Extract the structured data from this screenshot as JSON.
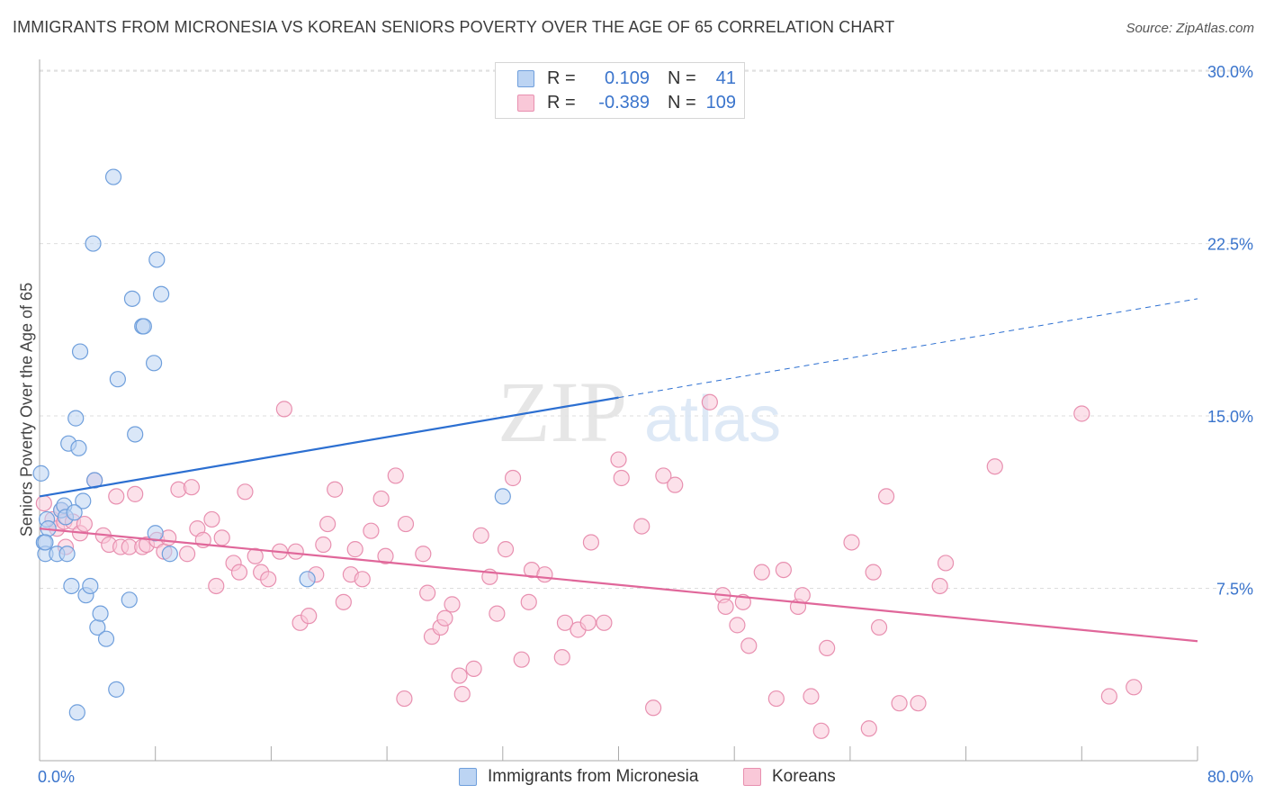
{
  "header": {
    "title": "IMMIGRANTS FROM MICRONESIA VS KOREAN SENIORS POVERTY OVER THE AGE OF 65 CORRELATION CHART",
    "source": "Source: ZipAtlas.com"
  },
  "watermark": {
    "part1": "ZIP",
    "part2": "atlas"
  },
  "legend_top": {
    "rows": [
      {
        "r_label": "R =",
        "r_value": "0.109",
        "n_label": "N =",
        "n_value": "41"
      },
      {
        "r_label": "R =",
        "r_value": "-0.389",
        "n_label": "N =",
        "n_value": "109"
      }
    ]
  },
  "colors": {
    "blue_fill": "#bcd4f3",
    "blue_stroke": "#6f9fdc",
    "blue_line": "#2c6fd1",
    "pink_fill": "#f9c8d8",
    "pink_stroke": "#e890b0",
    "pink_line": "#e0679a",
    "grid": "#dddddd",
    "tick_label": "#3a74cc"
  },
  "chart_data": {
    "type": "scatter",
    "title": "IMMIGRANTS FROM MICRONESIA VS KOREAN SENIORS POVERTY OVER THE AGE OF 65 CORRELATION CHART",
    "xlabel": "",
    "ylabel": "Seniors Poverty Over the Age of 65",
    "xlim": [
      0,
      80
    ],
    "ylim": [
      0,
      31.5
    ],
    "x_tick_labels": [
      "0.0%",
      "80.0%"
    ],
    "y_ticks": [
      7.5,
      15.0,
      22.5,
      30.0
    ],
    "y_tick_labels": [
      "7.5%",
      "15.0%",
      "22.5%",
      "30.0%"
    ],
    "grid": true,
    "legend_position": "bottom",
    "series": [
      {
        "name": "Immigrants from Micronesia",
        "color": "#bcd4f3",
        "trend": {
          "x0": 0,
          "y0": 11.5,
          "x1": 40,
          "y1": 15.8,
          "dashed_to_x": 80,
          "dashed_to_y": 20.1
        },
        "points": [
          [
            0.1,
            12.5
          ],
          [
            0.3,
            9.5
          ],
          [
            0.4,
            9.0
          ],
          [
            0.5,
            10.5
          ],
          [
            0.6,
            10.1
          ],
          [
            1.2,
            9.0
          ],
          [
            1.5,
            10.9
          ],
          [
            1.7,
            11.1
          ],
          [
            1.8,
            10.6
          ],
          [
            1.9,
            9.0
          ],
          [
            2.0,
            13.8
          ],
          [
            2.2,
            7.6
          ],
          [
            2.5,
            14.9
          ],
          [
            2.6,
            2.1
          ],
          [
            2.7,
            13.6
          ],
          [
            2.8,
            17.8
          ],
          [
            3.0,
            11.3
          ],
          [
            3.2,
            7.2
          ],
          [
            3.5,
            7.6
          ],
          [
            3.7,
            22.5
          ],
          [
            3.8,
            12.2
          ],
          [
            4.0,
            5.8
          ],
          [
            4.2,
            6.4
          ],
          [
            4.6,
            5.3
          ],
          [
            5.1,
            25.4
          ],
          [
            5.3,
            3.1
          ],
          [
            5.4,
            16.6
          ],
          [
            6.2,
            7.0
          ],
          [
            6.4,
            20.1
          ],
          [
            6.6,
            14.2
          ],
          [
            7.1,
            18.9
          ],
          [
            7.2,
            18.9
          ],
          [
            7.9,
            17.3
          ],
          [
            8.0,
            9.9
          ],
          [
            8.1,
            21.8
          ],
          [
            8.4,
            20.3
          ],
          [
            9.0,
            9.0
          ],
          [
            18.5,
            7.9
          ],
          [
            32.0,
            11.5
          ],
          [
            0.4,
            9.5
          ],
          [
            2.4,
            10.8
          ]
        ]
      },
      {
        "name": "Koreans",
        "color": "#f9c8d8",
        "trend": {
          "x0": 0,
          "y0": 10.1,
          "x1": 80,
          "y1": 5.2
        },
        "points": [
          [
            0.3,
            11.2
          ],
          [
            0.9,
            10.5
          ],
          [
            1.2,
            10.1
          ],
          [
            1.5,
            10.9
          ],
          [
            1.7,
            10.4
          ],
          [
            1.8,
            9.3
          ],
          [
            2.3,
            10.4
          ],
          [
            2.8,
            9.9
          ],
          [
            3.1,
            10.3
          ],
          [
            3.8,
            12.2
          ],
          [
            4.4,
            9.8
          ],
          [
            4.8,
            9.4
          ],
          [
            5.3,
            11.5
          ],
          [
            5.6,
            9.3
          ],
          [
            6.2,
            9.3
          ],
          [
            6.6,
            11.6
          ],
          [
            7.1,
            9.3
          ],
          [
            7.4,
            9.4
          ],
          [
            8.1,
            9.6
          ],
          [
            8.6,
            9.1
          ],
          [
            8.9,
            9.7
          ],
          [
            9.6,
            11.8
          ],
          [
            10.2,
            9.0
          ],
          [
            10.5,
            11.9
          ],
          [
            10.9,
            10.1
          ],
          [
            11.3,
            9.6
          ],
          [
            11.9,
            10.5
          ],
          [
            12.2,
            7.6
          ],
          [
            12.6,
            9.7
          ],
          [
            13.4,
            8.6
          ],
          [
            13.8,
            8.2
          ],
          [
            14.2,
            11.7
          ],
          [
            14.9,
            8.9
          ],
          [
            15.3,
            8.2
          ],
          [
            15.8,
            7.9
          ],
          [
            16.6,
            9.1
          ],
          [
            16.9,
            15.3
          ],
          [
            17.7,
            9.1
          ],
          [
            18.0,
            6.0
          ],
          [
            18.6,
            6.3
          ],
          [
            19.1,
            8.1
          ],
          [
            19.6,
            9.4
          ],
          [
            19.9,
            10.3
          ],
          [
            20.4,
            11.8
          ],
          [
            21.0,
            6.9
          ],
          [
            21.5,
            8.1
          ],
          [
            21.8,
            9.2
          ],
          [
            22.3,
            7.9
          ],
          [
            22.9,
            10.0
          ],
          [
            23.6,
            11.4
          ],
          [
            23.9,
            8.9
          ],
          [
            24.6,
            12.4
          ],
          [
            25.3,
            10.3
          ],
          [
            25.2,
            2.7
          ],
          [
            26.5,
            9.0
          ],
          [
            26.8,
            7.3
          ],
          [
            27.1,
            5.4
          ],
          [
            27.7,
            5.8
          ],
          [
            28.0,
            6.2
          ],
          [
            28.5,
            6.8
          ],
          [
            29.0,
            3.7
          ],
          [
            29.2,
            2.9
          ],
          [
            30.0,
            4.0
          ],
          [
            30.5,
            9.8
          ],
          [
            31.1,
            8.0
          ],
          [
            31.6,
            6.4
          ],
          [
            32.2,
            9.2
          ],
          [
            32.7,
            12.3
          ],
          [
            33.3,
            4.4
          ],
          [
            33.8,
            6.9
          ],
          [
            34.0,
            8.3
          ],
          [
            34.9,
            8.1
          ],
          [
            36.1,
            4.5
          ],
          [
            36.3,
            6.0
          ],
          [
            37.2,
            5.7
          ],
          [
            37.9,
            6.0
          ],
          [
            38.1,
            9.5
          ],
          [
            39.0,
            6.0
          ],
          [
            40.0,
            13.1
          ],
          [
            40.2,
            12.3
          ],
          [
            41.6,
            10.2
          ],
          [
            42.4,
            2.3
          ],
          [
            43.1,
            12.4
          ],
          [
            43.9,
            12.0
          ],
          [
            46.3,
            15.6
          ],
          [
            47.2,
            7.2
          ],
          [
            47.4,
            6.7
          ],
          [
            48.2,
            5.9
          ],
          [
            48.6,
            6.9
          ],
          [
            49.0,
            5.0
          ],
          [
            49.9,
            8.2
          ],
          [
            50.9,
            2.7
          ],
          [
            51.4,
            8.3
          ],
          [
            52.4,
            6.7
          ],
          [
            52.7,
            7.2
          ],
          [
            53.3,
            2.8
          ],
          [
            54.0,
            1.3
          ],
          [
            54.4,
            4.9
          ],
          [
            56.1,
            9.5
          ],
          [
            57.3,
            1.4
          ],
          [
            57.6,
            8.2
          ],
          [
            58.0,
            5.8
          ],
          [
            58.5,
            11.5
          ],
          [
            59.4,
            2.5
          ],
          [
            60.7,
            2.5
          ],
          [
            62.2,
            7.6
          ],
          [
            62.6,
            8.6
          ],
          [
            66.0,
            12.8
          ],
          [
            72.0,
            15.1
          ],
          [
            73.9,
            2.8
          ],
          [
            75.6,
            3.2
          ]
        ]
      }
    ]
  },
  "bottom_legend": {
    "items": [
      {
        "label": "Immigrants from Micronesia"
      },
      {
        "label": "Koreans"
      }
    ]
  }
}
